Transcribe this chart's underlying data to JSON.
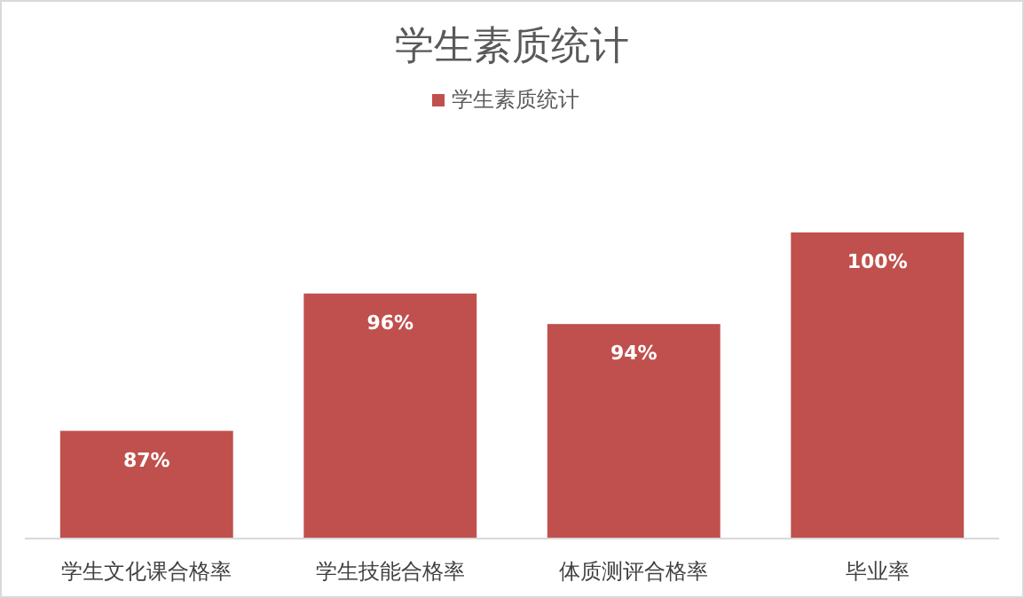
{
  "chart_data": {
    "type": "bar",
    "title": "学生素质统计",
    "categories": [
      "学生文化课合格率",
      "学生技能合格率",
      "体质测评合格率",
      "毕业率"
    ],
    "series": [
      {
        "name": "学生素质统计",
        "color": "#c0504d",
        "values": [
          87,
          96,
          94,
          100
        ],
        "value_labels": [
          "87%",
          "96%",
          "94%",
          "100%"
        ]
      }
    ],
    "ylim": [
      80,
      100
    ],
    "legend": "top"
  }
}
